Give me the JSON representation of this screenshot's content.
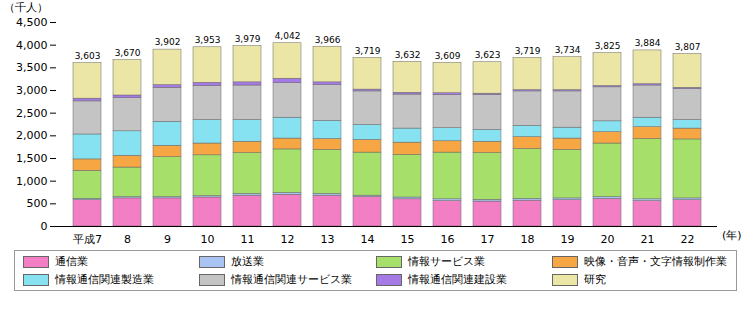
{
  "chart_data": {
    "type": "bar",
    "stacked": true,
    "ylabel": "（千人）",
    "xlabel": "(年)",
    "categories": [
      "平成7",
      "8",
      "9",
      "10",
      "11",
      "12",
      "13",
      "14",
      "15",
      "16",
      "17",
      "18",
      "19",
      "20",
      "21",
      "22"
    ],
    "ylim": [
      0,
      4500
    ],
    "yticks": [
      0,
      500,
      {
        "value": 1000,
        "label": "1,000"
      },
      {
        "value": 1500,
        "label": "1,500"
      },
      {
        "value": 2000,
        "label": "2,000"
      },
      {
        "value": 2500,
        "label": "2,500"
      },
      {
        "value": 3000,
        "label": "3,000"
      },
      {
        "value": 3500,
        "label": "3,500"
      },
      {
        "value": 4000,
        "label": "4,000"
      },
      {
        "value": 4500,
        "label": "4,500"
      }
    ],
    "grid": false,
    "legend": "bottom",
    "series": [
      {
        "name": "通信業",
        "color": "#f27ec4",
        "values": [
          580,
          620,
          620,
          640,
          680,
          700,
          680,
          650,
          600,
          560,
          550,
          570,
          580,
          610,
          560,
          580
        ]
      },
      {
        "name": "放送業",
        "color": "#a9c4f2",
        "values": [
          30,
          30,
          30,
          30,
          40,
          40,
          40,
          30,
          40,
          40,
          40,
          40,
          40,
          40,
          40,
          40
        ]
      },
      {
        "name": "情報サービス業",
        "color": "#a6e06a",
        "values": [
          620,
          650,
          880,
          900,
          900,
          960,
          970,
          950,
          940,
          1030,
          1030,
          1100,
          1070,
          1180,
          1330,
          1300
        ]
      },
      {
        "name": "映像・音声・文字情報制作業",
        "color": "#f7a644",
        "values": [
          250,
          260,
          250,
          260,
          250,
          240,
          240,
          280,
          270,
          250,
          250,
          260,
          250,
          250,
          260,
          240
        ]
      },
      {
        "name": "情報通信関連製造業",
        "color": "#86e2f0",
        "values": [
          550,
          540,
          530,
          520,
          480,
          460,
          400,
          330,
          310,
          290,
          260,
          250,
          240,
          240,
          210,
          190
        ]
      },
      {
        "name": "情報通信関連サービス業",
        "color": "#c4c4c4",
        "values": [
          730,
          730,
          750,
          750,
          760,
          760,
          790,
          740,
          750,
          730,
          770,
          760,
          800,
          750,
          710,
          680
        ]
      },
      {
        "name": "情報通信関連建設業",
        "color": "#a57ae6",
        "values": [
          60,
          60,
          60,
          70,
          70,
          100,
          60,
          40,
          40,
          40,
          30,
          30,
          30,
          30,
          30,
          30
        ]
      },
      {
        "name": "研究",
        "color": "#ece6a6",
        "values": [
          783,
          780,
          782,
          783,
          799,
          782,
          786,
          699,
          682,
          669,
          693,
          709,
          724,
          725,
          744,
          747
        ]
      }
    ],
    "totals": [
      3603,
      3670,
      3902,
      3953,
      3979,
      4042,
      3966,
      3719,
      3632,
      3609,
      3623,
      3719,
      3734,
      3825,
      3884,
      3807
    ],
    "total_labels": [
      "3,603",
      "3,670",
      "3,902",
      "3,953",
      "3,979",
      "4,042",
      "3,966",
      "3,719",
      "3,632",
      "3,609",
      "3,623",
      "3,719",
      "3,734",
      "3,825",
      "3,884",
      "3,807"
    ],
    "data_labels": false
  }
}
